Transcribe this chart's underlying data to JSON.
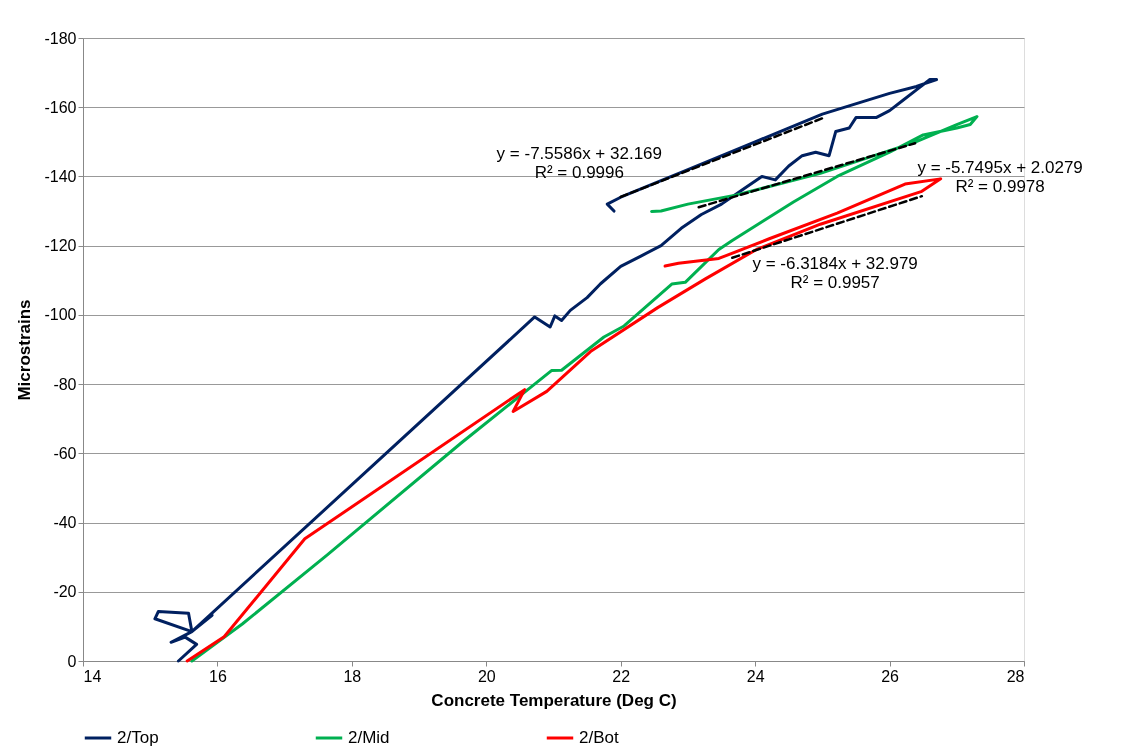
{
  "chart_data": {
    "type": "line",
    "xlabel": "Concrete Temperature (Deg C)",
    "ylabel": "Microstrains",
    "xlim": [
      14,
      28
    ],
    "xticks": [
      14,
      16,
      18,
      20,
      22,
      24,
      26,
      28
    ],
    "ylim": [
      0,
      -180
    ],
    "yticks": [
      0,
      -20,
      -40,
      -60,
      -80,
      -100,
      -120,
      -140,
      -160,
      -180
    ],
    "grid": "y",
    "legend": "bottom",
    "marker": "none",
    "line_style": "solid",
    "series": [
      {
        "name": "2/Top",
        "color": "#002060",
        "x": [
          15.42,
          15.69,
          15.52,
          15.31,
          15.62,
          15.07,
          15.12,
          15.57,
          15.62,
          15.92,
          15.62,
          20.72,
          20.95,
          21.02,
          21.12,
          21.25,
          21.5,
          21.7,
          22.0,
          22.3,
          22.6,
          22.9,
          23.2,
          23.5,
          23.8,
          24.1,
          24.3,
          24.5,
          24.7,
          24.9,
          25.1,
          25.2,
          25.4,
          25.5,
          25.8,
          26.0,
          26.2,
          26.4,
          26.6,
          26.7,
          26.4,
          26.0,
          25.0,
          24.0,
          23.0,
          22.0,
          21.8,
          21.9
        ],
        "values": [
          0,
          -4.8,
          -6.9,
          -5.4,
          -8.5,
          -12.2,
          -14.3,
          -13.8,
          -8.5,
          -13.2,
          -8.5,
          -99.4,
          -96.5,
          -99.7,
          -98.4,
          -101.3,
          -105,
          -109,
          -114,
          -117,
          -120,
          -125,
          -129,
          -132,
          -136,
          -140,
          -139,
          -143,
          -146,
          -147,
          -146,
          -153,
          -154,
          -157,
          -157,
          -159,
          -162,
          -165,
          -168,
          -168,
          -166,
          -164,
          -158,
          -150,
          -142,
          -134,
          -132,
          -130
        ]
      },
      {
        "name": "2/Mid",
        "color": "#00b050",
        "x": [
          15.62,
          16.37,
          17.63,
          19.64,
          20.65,
          20.97,
          21.12,
          21.75,
          22.05,
          22.76,
          22.96,
          23.46,
          23.66,
          24.57,
          25.22,
          26.0,
          26.5,
          27.0,
          27.2,
          27.3,
          27.0,
          26.38,
          24.97,
          23.71,
          23.0,
          22.6,
          22.46
        ],
        "values": [
          0,
          -10.7,
          -30.6,
          -63.2,
          -78.9,
          -83.9,
          -84,
          -93.6,
          -96.8,
          -108.9,
          -109.4,
          -118.9,
          -121.5,
          -132.6,
          -140,
          -147,
          -152,
          -154,
          -155,
          -157.3,
          -155,
          -149.9,
          -140.9,
          -134.6,
          -132,
          -130,
          -129.9
        ]
      },
      {
        "name": "2/Bot",
        "color": "#ff0000",
        "x": [
          15.55,
          16.1,
          17.3,
          20.57,
          20.4,
          20.9,
          21.55,
          22.55,
          23.26,
          24.02,
          24.97,
          26.48,
          26.76,
          26.23,
          25.22,
          24.21,
          23.46,
          22.86,
          22.66
        ],
        "values": [
          0,
          -7,
          -35.3,
          -78.4,
          -72.1,
          -77.9,
          -89.4,
          -102.1,
          -110.4,
          -118.9,
          -126.2,
          -135.7,
          -139.3,
          -137.8,
          -129.4,
          -122,
          -116.3,
          -114.9,
          -114.1
        ]
      },
      {
        "type": "line",
        "color": "#000000",
        "line_style": "dashed",
        "x": [
          22.0,
          25.04
        ],
        "values": [
          -134.1,
          -157.1
        ]
      },
      {
        "type": "line",
        "color": "#000000",
        "line_style": "dashed",
        "x": [
          23.16,
          26.38
        ],
        "values": [
          -131.1,
          -149.6
        ]
      },
      {
        "type": "line",
        "color": "#000000",
        "line_style": "dashed",
        "x": [
          23.66,
          26.48
        ],
        "values": [
          -116.5,
          -134.3
        ]
      }
    ],
    "annotations": [
      {
        "text": "y = -7.5586x + 32.169\nR² = 0.9996",
        "x": 22.5,
        "y": -137.9
      },
      {
        "text": "y = -5.7495x + 2.0279\nR² = 0.9978",
        "x": 26.38,
        "y": -149.6
      },
      {
        "text": "y = -6.3184x + 32.979\nR² = 0.9957",
        "x": 25.19,
        "y": -126.2
      }
    ]
  }
}
